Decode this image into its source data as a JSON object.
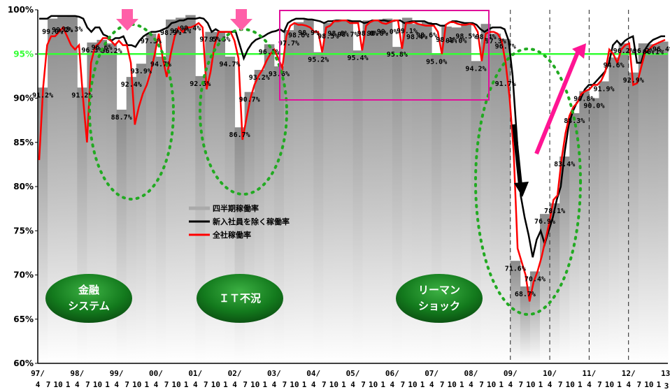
{
  "chart_data": {
    "type": "line",
    "y_axis": {
      "min": 60,
      "max": 100,
      "ticks": [
        "60%",
        "65%",
        "70%",
        "75%",
        "80%",
        "85%",
        "90%",
        "95%",
        "100%"
      ],
      "highlight_tick": "95%"
    },
    "reference_line": {
      "value": 95,
      "color": "#33ff33"
    },
    "x_axis": {
      "year_labels": [
        "97/",
        "98/",
        "99/",
        "00/",
        "01/",
        "02/",
        "03/",
        "04/",
        "05/",
        "06/",
        "07/",
        "08/",
        "09/",
        "10/",
        "11/",
        "12/",
        "13/"
      ],
      "month_labels": [
        "4",
        "7",
        "10",
        "1"
      ],
      "final_month_label": "3"
    },
    "legend": [
      {
        "name": "四半期稼働率",
        "color": "#aaaaaa"
      },
      {
        "name": "新入社員を除く稼働率",
        "color": "#000000"
      },
      {
        "name": "全社稼働率",
        "color": "#ff0000"
      }
    ],
    "series": [
      {
        "name": "全社稼働率",
        "color": "#ff0000",
        "values": [
          83,
          91.2,
          96,
          97,
          97,
          97.5,
          98,
          97,
          96,
          95.5,
          96,
          90,
          85,
          94,
          95.8,
          96.2,
          96.8,
          96.8,
          96.5,
          96,
          96.5,
          96,
          96,
          94,
          87,
          89,
          90.5,
          91.5,
          93,
          95,
          97.3,
          94.5,
          92.4,
          95,
          97,
          98,
          97.5,
          98,
          98,
          98.2,
          98.5,
          98,
          91,
          93,
          96,
          97.5,
          97.5,
          97.5,
          97.5,
          96.5,
          94.5,
          85.3,
          87.7,
          90,
          91.5,
          92.5,
          93.2,
          94.2,
          95,
          95.5,
          94.5,
          93.4,
          97,
          98.2,
          98.5,
          98.3,
          98.3,
          98.2,
          98,
          97.5,
          97.5,
          95.2,
          98,
          98.2,
          98.7,
          98.7,
          98.8,
          98.8,
          98.5,
          98.5,
          98.5,
          95.4,
          98.2,
          98.6,
          98.8,
          98.8,
          98.5,
          98.4,
          98.6,
          98.8,
          98.8,
          95.6,
          98.5,
          98.5,
          98.6,
          98.4,
          98.3,
          98.2,
          98.2,
          98.2,
          97.5,
          95,
          98.3,
          98.6,
          98.6,
          98.4,
          98.3,
          98.3,
          98.4,
          98.3,
          97.5,
          94.2,
          97.3,
          97.5,
          97.5,
          97.3,
          96.5,
          94,
          90,
          84,
          73,
          71.5,
          70,
          67,
          69.2,
          70.4,
          72,
          74,
          76,
          78.5,
          79,
          83,
          86,
          88,
          89,
          89.5,
          90.5,
          90.8,
          91,
          91.5,
          91.5,
          92,
          93,
          95.5,
          95,
          94,
          95.5,
          96,
          96.2,
          91.5,
          91.7,
          93.5,
          95.2,
          95.5,
          96,
          96.2,
          96.4,
          96.6
        ]
      },
      {
        "name": "新入社員を除く稼働率",
        "color": "#000000",
        "values": [
          99,
          99,
          99,
          99.3,
          99.3,
          99.3,
          99.3,
          99.3,
          99.3,
          99.3,
          99.2,
          99,
          98,
          97.5,
          98,
          98,
          97.2,
          97,
          96.5,
          96.8,
          96.8,
          97,
          96,
          96,
          95.8,
          96.5,
          97,
          97.3,
          97.5,
          97.5,
          97.6,
          97.8,
          98,
          98.5,
          98.6,
          98.8,
          98.8,
          99,
          99,
          99,
          99.1,
          99,
          98.5,
          97.5,
          97.8,
          97.5,
          97.5,
          97.5,
          97.5,
          97.5,
          96,
          94.5,
          95.5,
          96.2,
          96.6,
          96.8,
          97,
          97.3,
          97.5,
          97.6,
          97.8,
          97.5,
          98.5,
          98.8,
          99,
          99,
          99,
          98.9,
          98.9,
          98.8,
          98.7,
          98.5,
          98.7,
          98.7,
          98.8,
          98.8,
          98.8,
          98.8,
          98.7,
          98.7,
          98.7,
          98.5,
          98.6,
          98.8,
          98.8,
          98.8,
          98.8,
          98.7,
          98.7,
          98.8,
          98.8,
          98.5,
          98.6,
          98.7,
          98.7,
          98.7,
          98.7,
          98.5,
          98.4,
          98.4,
          98.2,
          98.2,
          98.5,
          98.7,
          98.7,
          98.6,
          98.5,
          98.5,
          98.5,
          98.3,
          97.8,
          97.5,
          97.8,
          98,
          98,
          98,
          97.8,
          96.5,
          92.5,
          86,
          79,
          76.5,
          74.5,
          72,
          74,
          75,
          73.5,
          75,
          76.5,
          78.5,
          80,
          84,
          87,
          88.5,
          89.5,
          90,
          91,
          91.5,
          91.5,
          92,
          92.5,
          93,
          94,
          96,
          96.5,
          96,
          96.5,
          96.8,
          97,
          94,
          94,
          95.5,
          96.2,
          96.6,
          96.8,
          97,
          97
        ]
      }
    ],
    "quarterly": [
      {
        "value": 91.2,
        "label": "91.2%"
      },
      {
        "value": 99.0,
        "label": "99.0%"
      },
      {
        "value": 99.2,
        "label": "99.2%"
      },
      {
        "value": 99.3,
        "label": "99.3%"
      },
      {
        "value": 91.2,
        "label": "91.2%"
      },
      {
        "value": 96.3,
        "label": "96.3%"
      },
      {
        "value": 96.6,
        "label": "96.6%"
      },
      {
        "value": 96.2,
        "label": "96.2%"
      },
      {
        "value": 88.7,
        "label": "88.7%"
      },
      {
        "value": 92.4,
        "label": "92.4%"
      },
      {
        "value": 93.9,
        "label": "93.9%"
      },
      {
        "value": 97.3,
        "label": "97.3%"
      },
      {
        "value": 94.7,
        "label": "94.7%"
      },
      {
        "value": 98.9,
        "label": "98.9%"
      },
      {
        "value": 99.1,
        "label": "99.1%"
      },
      {
        "value": 99.4,
        "label": "99.4%"
      },
      {
        "value": 92.5,
        "label": "92.5%"
      },
      {
        "value": 97.5,
        "label": "97.5%"
      },
      {
        "value": 97.5,
        "label": "97.5%"
      },
      {
        "value": 94.7,
        "label": "94.7%"
      },
      {
        "value": 86.7,
        "label": "86.7%"
      },
      {
        "value": 90.7,
        "label": "90.7%"
      },
      {
        "value": 93.2,
        "label": "93.2%"
      },
      {
        "value": 96.1,
        "label": "96.1%"
      },
      {
        "value": 93.6,
        "label": "93.6%"
      },
      {
        "value": 97.7,
        "label": "97.7%"
      },
      {
        "value": 98.6,
        "label": "98.6%"
      },
      {
        "value": 98.9,
        "label": "98.9%"
      },
      {
        "value": 95.2,
        "label": "95.2%"
      },
      {
        "value": 98.5,
        "label": "98.5%"
      },
      {
        "value": 98.8,
        "label": "98.8%"
      },
      {
        "value": 98.7,
        "label": "98.7%"
      },
      {
        "value": 95.4,
        "label": "95.4%"
      },
      {
        "value": 98.8,
        "label": "98.8%"
      },
      {
        "value": 98.8,
        "label": "98.8%"
      },
      {
        "value": 99.0,
        "label": "99.0%"
      },
      {
        "value": 95.8,
        "label": "95.8%"
      },
      {
        "value": 99.1,
        "label": "99.1%"
      },
      {
        "value": 98.4,
        "label": "98.4%"
      },
      {
        "value": 98.6,
        "label": "98.6%"
      },
      {
        "value": 95.0,
        "label": "95.0%"
      },
      {
        "value": 98.1,
        "label": "98.1%"
      },
      {
        "value": 98.0,
        "label": "98.0%"
      },
      {
        "value": 98.5,
        "label": "98.5%"
      },
      {
        "value": 94.2,
        "label": "94.2%"
      },
      {
        "value": 98.4,
        "label": "98.4%"
      },
      {
        "value": 97.3,
        "label": "97.3%"
      },
      {
        "value": 96.7,
        "label": "96.7%"
      },
      {
        "value": 71.6,
        "label": "71.6%"
      },
      {
        "value": 68.7,
        "label": "68.7%"
      },
      {
        "value": 70.4,
        "label": "70.4%"
      },
      {
        "value": 76.9,
        "label": "76.9%"
      },
      {
        "value": 78.1,
        "label": "78.1%"
      },
      {
        "value": 83.4,
        "label": "83.4%"
      },
      {
        "value": 88.3,
        "label": "88.3%"
      },
      {
        "value": 90.8,
        "label": "90.8%"
      },
      {
        "value": 90.0,
        "label": "90.0%"
      },
      {
        "value": 91.9,
        "label": "91.9%"
      },
      {
        "value": 94.6,
        "label": "94.6%"
      },
      {
        "value": 96.2,
        "label": "96.2%"
      },
      {
        "value": 92.9,
        "label": "92.9%"
      },
      {
        "value": 96.2,
        "label": "96.2%"
      },
      {
        "value": 96.1,
        "label": "96.1%"
      },
      {
        "value": 96.4,
        "label": "96.4%"
      }
    ],
    "extra_labels": [
      {
        "text": "91.7%",
        "value": 91.7
      }
    ],
    "annotations": [
      {
        "text_lines": [
          "金融",
          "システム"
        ],
        "name": "financial-system"
      },
      {
        "text_lines": [
          "ＩＴ不況"
        ],
        "name": "it-recession"
      },
      {
        "text_lines": [
          "リーマン",
          "ショック"
        ],
        "name": "lehman-shock"
      }
    ]
  }
}
